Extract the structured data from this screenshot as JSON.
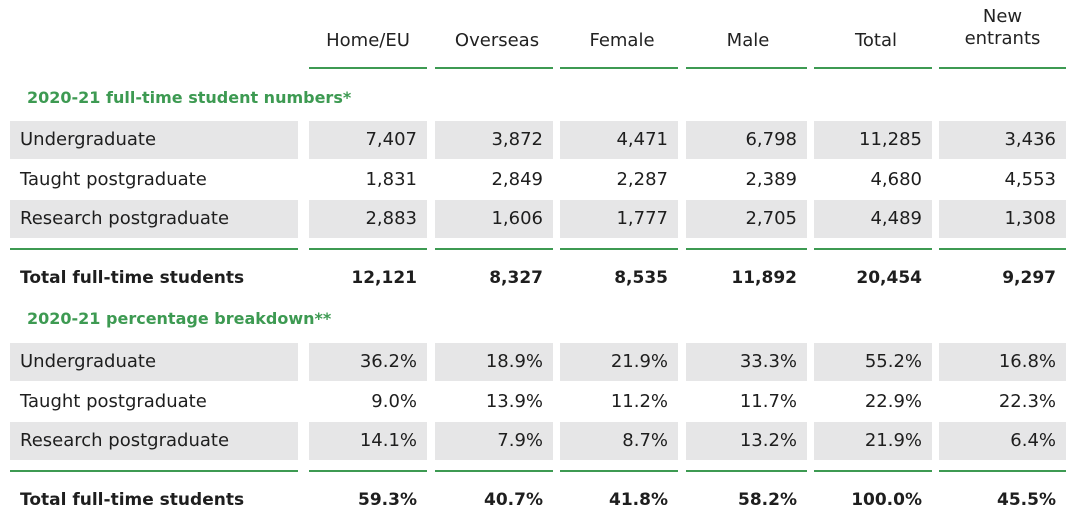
{
  "headers": [
    "Home/EU",
    "Overseas",
    "Female",
    "Male",
    "Total",
    "New entrants"
  ],
  "headers_display": {
    "home_eu": "Home/EU",
    "overseas": "Overseas",
    "female": "Female",
    "male": "Male",
    "total": "Total",
    "new_entrants_line1": "New",
    "new_entrants_line2": "entrants"
  },
  "colors": {
    "accent_green": "#3d9a52",
    "row_shade": "#e6e6e7",
    "text": "#1e1e1e"
  },
  "numbers": {
    "title": "2020-21 full-time student numbers*",
    "rows": [
      {
        "label": "Undergraduate",
        "values": [
          "7,407",
          "3,872",
          "4,471",
          "6,798",
          "11,285",
          "3,436"
        ]
      },
      {
        "label": "Taught postgraduate",
        "values": [
          "1,831",
          "2,849",
          "2,287",
          "2,389",
          "4,680",
          "4,553"
        ]
      },
      {
        "label": "Research postgraduate",
        "values": [
          "2,883",
          "1,606",
          "1,777",
          "2,705",
          "4,489",
          "1,308"
        ]
      }
    ],
    "total": {
      "label": "Total full-time students",
      "values": [
        "12,121",
        "8,327",
        "8,535",
        "11,892",
        "20,454",
        "9,297"
      ]
    }
  },
  "percentages": {
    "title": "2020-21 percentage breakdown**",
    "rows": [
      {
        "label": "Undergraduate",
        "values": [
          "36.2%",
          "18.9%",
          "21.9%",
          "33.3%",
          "55.2%",
          "16.8%"
        ]
      },
      {
        "label": "Taught postgraduate",
        "values": [
          "9.0%",
          "13.9%",
          "11.2%",
          "11.7%",
          "22.9%",
          "22.3%"
        ]
      },
      {
        "label": "Research postgraduate",
        "values": [
          "14.1%",
          "7.9%",
          "8.7%",
          "13.2%",
          "21.9%",
          "6.4%"
        ]
      }
    ],
    "total": {
      "label": "Total full-time students",
      "values": [
        "59.3%",
        "40.7%",
        "41.8%",
        "58.2%",
        "100.0%",
        "45.5%"
      ]
    }
  }
}
